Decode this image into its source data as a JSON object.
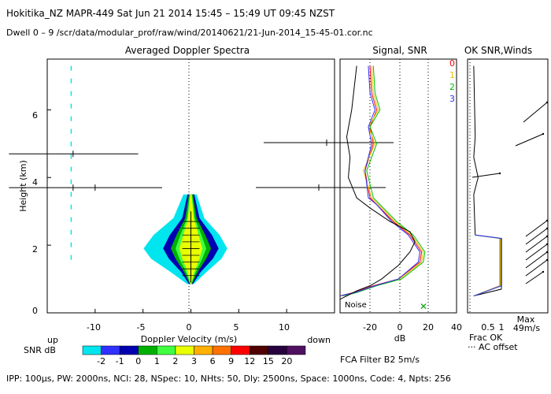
{
  "header": {
    "line1": "Hokitika_NZ  MAPR-449  Sat Jun 21 2014 15:45 – 15:49 UT 09:45 NZST",
    "line2": "Dwell  0 – 9   /scr/data/modular_prof/raw/wind/20140621/21-Jun-2014_15-45-01.cor.nc"
  },
  "footer": {
    "params": "IPP: 100µs,  PW: 2000ns,  NCI:  28,  NSpec: 10, NHts: 50,  Dly: 2500ns,  Space: 1000ns,  Code: 4,  Npts: 256",
    "filter": "FCA Filter B2   5m/s"
  },
  "colors": {
    "snr_scale": [
      "#00e5ee",
      "#3030ff",
      "#0000b0",
      "#00b000",
      "#40ff40",
      "#e8ff00",
      "#ffb000",
      "#ff7000",
      "#ff0000",
      "#500000",
      "#280040",
      "#501060"
    ],
    "series": [
      "#ff0000",
      "#e8c000",
      "#00c000",
      "#3030ff"
    ]
  },
  "chart_data": [
    {
      "type": "heatmap",
      "title": "Averaged Doppler Spectra",
      "xlabel": "Doppler Velocity (m/s)",
      "ylabel": "Height (km)",
      "xlim": [
        -15,
        15
      ],
      "ylim": [
        0,
        7.5
      ],
      "x_ticks": [
        "-10",
        "-5",
        "0",
        "5",
        "10"
      ],
      "y_ticks": [
        "0",
        "2",
        "4",
        "6"
      ],
      "left_label": "up",
      "right_label": "down",
      "colorbar": {
        "label": "SNR dB",
        "ticks": [
          "-2",
          "-1",
          "0",
          "1",
          "2",
          "3",
          "6",
          "9",
          "12",
          "15",
          "20"
        ]
      },
      "spectral_peak": {
        "height_km": [
          0.9,
          3.6
        ],
        "velocity_ms": 0
      },
      "interference_lines": [
        {
          "height_km": 4.7,
          "x_start": -19,
          "x_end": -5.5
        },
        {
          "height_km": 3.7,
          "x_start": -19,
          "x_end": -3
        }
      ]
    },
    {
      "type": "line",
      "title": "Signal, SNR",
      "xlabel": "dB",
      "xlim": [
        -30,
        40
      ],
      "ylim": [
        0,
        7.5
      ],
      "x_ticks": [
        "-20",
        "0",
        "20",
        "40"
      ],
      "legend": [
        "0",
        "1",
        "2",
        "3"
      ],
      "noise_label": "Noise",
      "series": [
        {
          "name": "0",
          "x": [
            -30,
            -22,
            -10,
            5,
            18,
            19,
            12,
            2,
            -8,
            -12,
            -15,
            -10,
            -12,
            -8,
            -11,
            -12
          ],
          "y": [
            0.5,
            0.6,
            0.8,
            1.0,
            1.5,
            1.8,
            2.3,
            2.7,
            3.2,
            3.4,
            4.2,
            5.0,
            5.5,
            6.0,
            6.5,
            7.3
          ]
        },
        {
          "name": "1",
          "x": [
            -29,
            -21,
            -9,
            6,
            19,
            20,
            13,
            3,
            -7,
            -11,
            -16,
            -9,
            -13,
            -7,
            -10,
            -11
          ],
          "y": [
            0.5,
            0.6,
            0.8,
            1.0,
            1.5,
            1.8,
            2.3,
            2.7,
            3.2,
            3.4,
            4.2,
            5.0,
            5.5,
            6.0,
            6.5,
            7.3
          ]
        },
        {
          "name": "2",
          "x": [
            -28,
            -20,
            -8,
            7,
            20,
            21,
            14,
            4,
            -6,
            -10,
            -14,
            -8,
            -12,
            -6,
            -9,
            -10
          ],
          "y": [
            0.5,
            0.6,
            0.8,
            1.0,
            1.5,
            1.8,
            2.3,
            2.7,
            3.2,
            3.4,
            4.2,
            5.0,
            5.5,
            6.0,
            6.5,
            7.3
          ]
        },
        {
          "name": "3",
          "x": [
            -30,
            -21,
            -9,
            5,
            17,
            18,
            11,
            1,
            -8,
            -13,
            -15,
            -11,
            -13,
            -9,
            -12,
            -13
          ],
          "y": [
            0.5,
            0.6,
            0.8,
            1.0,
            1.5,
            1.8,
            2.3,
            2.7,
            3.2,
            3.4,
            4.2,
            5.0,
            5.5,
            6.0,
            6.5,
            7.3
          ]
        }
      ]
    },
    {
      "type": "line",
      "title": "OK SNR,Winds",
      "xlabel": "Frac OK",
      "x_ticks": [
        "0.5",
        "1"
      ],
      "annotation_legend": "··· AC offset",
      "max_label": "Max",
      "max_value": "49m/s"
    }
  ]
}
